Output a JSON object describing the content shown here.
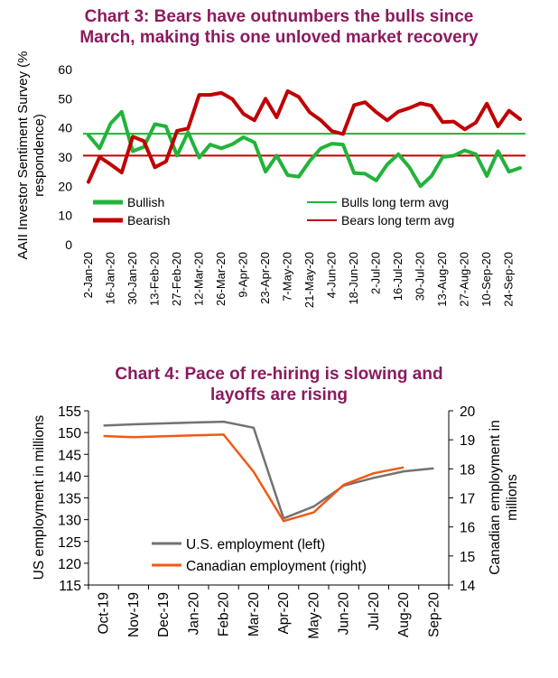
{
  "chart_data": [
    {
      "type": "line",
      "title_line1": "Chart 3: Bears have outnumbers the bulls since",
      "title_line2": "March, making this one unloved market recovery",
      "ylabel_line1": "AAII Investor Sentiment Survey (%",
      "ylabel_line2": "respondence)",
      "ylim": [
        0,
        60
      ],
      "yticks": [
        "0",
        "10",
        "20",
        "30",
        "40",
        "50",
        "60"
      ],
      "tick_labels": [
        "2-Jan-20",
        "16-Jan-20",
        "30-Jan-20",
        "13-Feb-20",
        "27-Feb-20",
        "12-Mar-20",
        "26-Mar-20",
        "9-Apr-20",
        "23-Apr-20",
        "7-May-20",
        "21-May-20",
        "4-Jun-20",
        "18-Jun-20",
        "2-Jul-20",
        "16-Jul-20",
        "30-Jul-20",
        "13-Aug-20",
        "27-Aug-20",
        "10-Sep-20",
        "24-Sep-20"
      ],
      "x": [
        "2-Jan-20",
        "9-Jan-20",
        "16-Jan-20",
        "23-Jan-20",
        "30-Jan-20",
        "6-Feb-20",
        "13-Feb-20",
        "20-Feb-20",
        "27-Feb-20",
        "5-Mar-20",
        "12-Mar-20",
        "19-Mar-20",
        "26-Mar-20",
        "2-Apr-20",
        "9-Apr-20",
        "16-Apr-20",
        "23-Apr-20",
        "30-Apr-20",
        "7-May-20",
        "14-May-20",
        "21-May-20",
        "28-May-20",
        "4-Jun-20",
        "11-Jun-20",
        "18-Jun-20",
        "25-Jun-20",
        "2-Jul-20",
        "9-Jul-20",
        "16-Jul-20",
        "23-Jul-20",
        "30-Jul-20",
        "6-Aug-20",
        "13-Aug-20",
        "20-Aug-20",
        "27-Aug-20",
        "3-Sep-20",
        "10-Sep-20",
        "17-Sep-20",
        "24-Sep-20",
        "1-Oct-20"
      ],
      "series": [
        {
          "name": "Bullish",
          "color": "#22b33a",
          "values": [
            37.5,
            33.0,
            41.5,
            45.5,
            32.0,
            33.5,
            41.3,
            40.5,
            30.5,
            38.5,
            29.8,
            34.3,
            33.0,
            34.4,
            36.8,
            35.0,
            25.0,
            30.5,
            23.8,
            23.3,
            28.7,
            33.0,
            34.6,
            34.3,
            24.5,
            24.3,
            22.0,
            27.5,
            31.0,
            26.5,
            20.0,
            23.5,
            30.0,
            30.5,
            32.3,
            31.0,
            23.5,
            32.0,
            25.0,
            26.3
          ]
        },
        {
          "name": "Bearish",
          "color": "#c00000",
          "values": [
            21.5,
            30.0,
            27.5,
            24.7,
            37.0,
            35.5,
            26.5,
            28.5,
            39.0,
            39.8,
            51.3,
            51.3,
            52.0,
            49.9,
            44.8,
            42.6,
            50.0,
            43.6,
            52.6,
            50.6,
            45.3,
            42.6,
            38.9,
            37.9,
            47.8,
            48.8,
            45.4,
            42.6,
            45.6,
            46.8,
            48.4,
            47.6,
            42.0,
            42.2,
            39.5,
            41.8,
            48.3,
            40.5,
            45.9,
            43.0
          ]
        }
      ],
      "reference_lines": [
        {
          "name": "Bulls long term avg",
          "value": 38.0,
          "color": "#22b33a"
        },
        {
          "name": "Bears long term avg",
          "value": 30.5,
          "color": "#c00000"
        }
      ],
      "legend": {
        "placement": "bottom-center",
        "items": [
          "Bullish",
          "Bulls long term avg",
          "Bearish",
          "Bears long term avg"
        ]
      },
      "grid": false
    },
    {
      "type": "line",
      "title_line1": "Chart 4:  Pace of re-hiring is slowing and",
      "title_line2": "layoffs are rising",
      "ylabel_left": "US employment in millions",
      "ylabel_right_line1": "Canadian employment in",
      "ylabel_right_line2": "millions",
      "ylim_left": [
        115,
        155
      ],
      "ylim_right": [
        14,
        20
      ],
      "yticks_left": [
        "115",
        "120",
        "125",
        "130",
        "135",
        "140",
        "145",
        "150",
        "155"
      ],
      "yticks_right": [
        "14",
        "15",
        "16",
        "17",
        "18",
        "19",
        "20"
      ],
      "categories": [
        "Oct-19",
        "Nov-19",
        "Dec-19",
        "Jan-20",
        "Feb-20",
        "Mar-20",
        "Apr-20",
        "May-20",
        "Jun-20",
        "Jul-20",
        "Aug-20",
        "Sep-20"
      ],
      "series": [
        {
          "name": "U.S. employment (left)",
          "axis": "left",
          "color": "#767171",
          "values": [
            151.6,
            151.9,
            152.1,
            152.3,
            152.5,
            151.1,
            130.3,
            133.0,
            137.8,
            139.6,
            141.1,
            141.8
          ]
        },
        {
          "name": "Canadian employment (right)",
          "axis": "right",
          "color": "#f05a14",
          "values": [
            19.13,
            19.09,
            19.12,
            19.15,
            19.18,
            17.9,
            16.2,
            16.5,
            17.45,
            17.85,
            18.05,
            null
          ]
        }
      ],
      "legend": {
        "placement": "bottom-left",
        "items": [
          "U.S. employment (left)",
          "Canadian employment (right)"
        ]
      },
      "grid": false
    }
  ]
}
